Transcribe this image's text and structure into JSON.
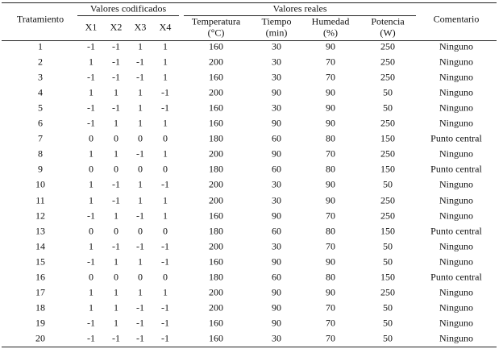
{
  "table": {
    "header": {
      "tratamiento": "Tratamiento",
      "grupo_codificados": "Valores codificados",
      "grupo_reales": "Valores reales",
      "comentario": "Comentario",
      "columnas": [
        [
          "X1"
        ],
        [
          "X2"
        ],
        [
          "X3"
        ],
        [
          "X4"
        ],
        [
          "Temperatura",
          "(°C)"
        ],
        [
          "Tiempo",
          "(min)"
        ],
        [
          "Humedad",
          "(%)"
        ],
        [
          "Potencia",
          "(W)"
        ]
      ]
    },
    "rows": [
      [
        "1",
        "-1",
        "-1",
        "1",
        "1",
        "160",
        "30",
        "90",
        "250",
        "Ninguno"
      ],
      [
        "2",
        "1",
        "-1",
        "-1",
        "1",
        "200",
        "30",
        "70",
        "250",
        "Ninguno"
      ],
      [
        "3",
        "-1",
        "-1",
        "-1",
        "1",
        "160",
        "30",
        "70",
        "250",
        "Ninguno"
      ],
      [
        "4",
        "1",
        "1",
        "1",
        "-1",
        "200",
        "90",
        "90",
        "50",
        "Ninguno"
      ],
      [
        "5",
        "-1",
        "-1",
        "1",
        "-1",
        "160",
        "30",
        "90",
        "50",
        "Ninguno"
      ],
      [
        "6",
        "-1",
        "1",
        "1",
        "1",
        "160",
        "90",
        "90",
        "250",
        "Ninguno"
      ],
      [
        "7",
        "0",
        "0",
        "0",
        "0",
        "180",
        "60",
        "80",
        "150",
        "Punto central"
      ],
      [
        "8",
        "1",
        "1",
        "-1",
        "1",
        "200",
        "90",
        "70",
        "250",
        "Ninguno"
      ],
      [
        "9",
        "0",
        "0",
        "0",
        "0",
        "180",
        "60",
        "80",
        "150",
        "Punto central"
      ],
      [
        "10",
        "1",
        "-1",
        "1",
        "-1",
        "200",
        "30",
        "90",
        "50",
        "Ninguno"
      ],
      [
        "11",
        "1",
        "-1",
        "1",
        "1",
        "200",
        "30",
        "90",
        "250",
        "Ninguno"
      ],
      [
        "12",
        "-1",
        "1",
        "-1",
        "1",
        "160",
        "90",
        "70",
        "250",
        "Ninguno"
      ],
      [
        "13",
        "0",
        "0",
        "0",
        "0",
        "180",
        "60",
        "80",
        "150",
        "Punto central"
      ],
      [
        "14",
        "1",
        "-1",
        "-1",
        "-1",
        "200",
        "30",
        "70",
        "50",
        "Ninguno"
      ],
      [
        "15",
        "-1",
        "1",
        "1",
        "-1",
        "160",
        "90",
        "90",
        "50",
        "Ninguno"
      ],
      [
        "16",
        "0",
        "0",
        "0",
        "0",
        "180",
        "60",
        "80",
        "150",
        "Punto central"
      ],
      [
        "17",
        "1",
        "1",
        "1",
        "1",
        "200",
        "90",
        "90",
        "250",
        "Ninguno"
      ],
      [
        "18",
        "1",
        "1",
        "-1",
        "-1",
        "200",
        "90",
        "70",
        "50",
        "Ninguno"
      ],
      [
        "19",
        "-1",
        "1",
        "-1",
        "-1",
        "160",
        "90",
        "70",
        "50",
        "Ninguno"
      ],
      [
        "20",
        "-1",
        "-1",
        "-1",
        "-1",
        "160",
        "30",
        "70",
        "50",
        "Ninguno"
      ]
    ]
  }
}
